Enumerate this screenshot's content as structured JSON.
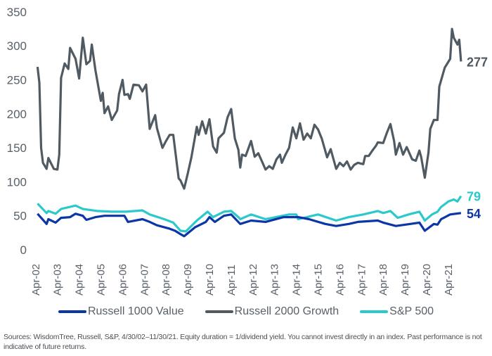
{
  "chart_data": {
    "type": "line",
    "title": "",
    "xlabel": "",
    "ylabel": "",
    "ylim": [
      0,
      350
    ],
    "yticks": [
      "0",
      "50",
      "100",
      "150",
      "200",
      "250",
      "300",
      "350"
    ],
    "xticks": [
      "Apr-02",
      "Apr-03",
      "Apr-04",
      "Apr-05",
      "Apr-06",
      "Apr-07",
      "Apr-08",
      "Apr-09",
      "Apr-10",
      "Apr-11",
      "Apr-12",
      "Apr-13",
      "Apr-14",
      "Apr-15",
      "Apr-16",
      "Apr-17",
      "Apr-18",
      "Apr-19",
      "Apr-20",
      "Apr-21"
    ],
    "grid": false,
    "legend_position": "bottom",
    "series": [
      {
        "name": "Russell 1000 Value",
        "color": "#0b36a8",
        "end_label": "54",
        "points": [
          [
            "2002-05",
            53
          ],
          [
            "2002-10",
            38
          ],
          [
            "2002-11",
            45
          ],
          [
            "2003-03",
            40
          ],
          [
            "2003-06",
            47
          ],
          [
            "2003-11",
            48
          ],
          [
            "2004-02",
            53
          ],
          [
            "2004-06",
            50
          ],
          [
            "2004-08",
            44
          ],
          [
            "2005-01",
            48
          ],
          [
            "2005-06",
            50
          ],
          [
            "2006-05",
            50
          ],
          [
            "2006-07",
            41
          ],
          [
            "2007-03",
            45
          ],
          [
            "2007-07",
            41
          ],
          [
            "2007-11",
            36
          ],
          [
            "2008-06",
            31
          ],
          [
            "2008-09",
            28
          ],
          [
            "2008-12",
            23
          ],
          [
            "2009-02",
            20
          ],
          [
            "2009-08",
            33
          ],
          [
            "2010-02",
            41
          ],
          [
            "2010-04",
            48
          ],
          [
            "2010-07",
            41
          ],
          [
            "2010-12",
            50
          ],
          [
            "2011-04",
            52
          ],
          [
            "2011-09",
            38
          ],
          [
            "2012-03",
            43
          ],
          [
            "2012-11",
            41
          ],
          [
            "2013-09",
            48
          ],
          [
            "2014-05",
            48
          ],
          [
            "2014-11",
            45
          ],
          [
            "2015-08",
            38
          ],
          [
            "2016-02",
            35
          ],
          [
            "2016-09",
            38
          ],
          [
            "2017-02",
            41
          ],
          [
            "2018-01",
            43
          ],
          [
            "2018-04",
            40
          ],
          [
            "2018-11",
            35
          ],
          [
            "2019-07",
            38
          ],
          [
            "2019-12",
            40
          ],
          [
            "2020-03",
            28
          ],
          [
            "2020-08",
            38
          ],
          [
            "2020-10",
            37
          ],
          [
            "2020-12",
            45
          ],
          [
            "2021-05",
            52
          ],
          [
            "2021-11",
            54
          ]
        ]
      },
      {
        "name": "Russell 2000 Growth",
        "color": "#505a63",
        "end_label": "277",
        "points": [
          [
            "2002-05",
            269
          ],
          [
            "2002-06",
            246
          ],
          [
            "2002-07",
            150
          ],
          [
            "2002-08",
            128
          ],
          [
            "2002-10",
            119
          ],
          [
            "2002-11",
            135
          ],
          [
            "2003-02",
            119
          ],
          [
            "2003-04",
            118
          ],
          [
            "2003-05",
            140
          ],
          [
            "2003-06",
            253
          ],
          [
            "2003-08",
            274
          ],
          [
            "2003-10",
            266
          ],
          [
            "2003-11",
            297
          ],
          [
            "2004-02",
            281
          ],
          [
            "2004-04",
            252
          ],
          [
            "2004-06",
            312
          ],
          [
            "2004-08",
            273
          ],
          [
            "2004-10",
            278
          ],
          [
            "2004-11",
            302
          ],
          [
            "2005-01",
            264
          ],
          [
            "2005-04",
            219
          ],
          [
            "2005-05",
            231
          ],
          [
            "2005-06",
            201
          ],
          [
            "2005-08",
            211
          ],
          [
            "2005-10",
            191
          ],
          [
            "2006-01",
            205
          ],
          [
            "2006-02",
            229
          ],
          [
            "2006-04",
            250
          ],
          [
            "2006-05",
            228
          ],
          [
            "2006-07",
            229
          ],
          [
            "2006-08",
            222
          ],
          [
            "2006-10",
            243
          ],
          [
            "2007-01",
            242
          ],
          [
            "2007-03",
            233
          ],
          [
            "2007-05",
            243
          ],
          [
            "2007-07",
            178
          ],
          [
            "2007-10",
            198
          ],
          [
            "2007-11",
            179
          ],
          [
            "2008-02",
            150
          ],
          [
            "2008-04",
            160
          ],
          [
            "2008-06",
            169
          ],
          [
            "2008-08",
            169
          ],
          [
            "2008-11",
            105
          ],
          [
            "2008-12",
            102
          ],
          [
            "2009-02",
            90
          ],
          [
            "2009-04",
            112
          ],
          [
            "2009-06",
            136
          ],
          [
            "2009-09",
            181
          ],
          [
            "2009-10",
            169
          ],
          [
            "2009-12",
            189
          ],
          [
            "2010-02",
            171
          ],
          [
            "2010-04",
            192
          ],
          [
            "2010-06",
            152
          ],
          [
            "2010-08",
            143
          ],
          [
            "2010-09",
            164
          ],
          [
            "2010-12",
            172
          ],
          [
            "2011-02",
            195
          ],
          [
            "2011-04",
            207
          ],
          [
            "2011-06",
            164
          ],
          [
            "2011-08",
            147
          ],
          [
            "2011-09",
            121
          ],
          [
            "2011-10",
            140
          ],
          [
            "2011-12",
            138
          ],
          [
            "2012-03",
            160
          ],
          [
            "2012-05",
            137
          ],
          [
            "2012-07",
            142
          ],
          [
            "2012-09",
            130
          ],
          [
            "2012-11",
            118
          ],
          [
            "2013-01",
            123
          ],
          [
            "2013-03",
            119
          ],
          [
            "2013-05",
            133
          ],
          [
            "2013-07",
            140
          ],
          [
            "2013-08",
            128
          ],
          [
            "2013-10",
            140
          ],
          [
            "2013-12",
            150
          ],
          [
            "2014-02",
            180
          ],
          [
            "2014-04",
            164
          ],
          [
            "2014-06",
            186
          ],
          [
            "2014-08",
            162
          ],
          [
            "2014-10",
            171
          ],
          [
            "2014-12",
            164
          ],
          [
            "2015-02",
            184
          ],
          [
            "2015-04",
            177
          ],
          [
            "2015-06",
            164
          ],
          [
            "2015-09",
            136
          ],
          [
            "2015-11",
            148
          ],
          [
            "2016-02",
            119
          ],
          [
            "2016-04",
            128
          ],
          [
            "2016-06",
            123
          ],
          [
            "2016-08",
            130
          ],
          [
            "2016-10",
            118
          ],
          [
            "2016-12",
            125
          ],
          [
            "2017-02",
            128
          ],
          [
            "2017-05",
            126
          ],
          [
            "2017-06",
            138
          ],
          [
            "2017-08",
            138
          ],
          [
            "2017-10",
            146
          ],
          [
            "2017-12",
            153
          ],
          [
            "2018-01",
            158
          ],
          [
            "2018-04",
            157
          ],
          [
            "2018-06",
            172
          ],
          [
            "2018-08",
            185
          ],
          [
            "2018-10",
            160
          ],
          [
            "2018-11",
            140
          ],
          [
            "2019-01",
            157
          ],
          [
            "2019-03",
            140
          ],
          [
            "2019-05",
            151
          ],
          [
            "2019-08",
            133
          ],
          [
            "2019-10",
            131
          ],
          [
            "2019-12",
            146
          ],
          [
            "2020-01",
            136
          ],
          [
            "2020-03",
            106
          ],
          [
            "2020-05",
            143
          ],
          [
            "2020-06",
            178
          ],
          [
            "2020-08",
            191
          ],
          [
            "2020-10",
            191
          ],
          [
            "2020-11",
            240
          ],
          [
            "2021-02",
            268
          ],
          [
            "2021-05",
            281
          ],
          [
            "2021-06",
            325
          ],
          [
            "2021-07",
            312
          ],
          [
            "2021-09",
            302
          ],
          [
            "2021-10",
            309
          ],
          [
            "2021-11",
            277
          ]
        ]
      },
      {
        "name": "S&P 500",
        "color": "#2cc9cc",
        "end_label": "79",
        "points": [
          [
            "2002-05",
            68
          ],
          [
            "2002-10",
            54
          ],
          [
            "2002-11",
            57
          ],
          [
            "2003-03",
            53
          ],
          [
            "2003-06",
            60
          ],
          [
            "2004-02",
            65
          ],
          [
            "2004-06",
            60
          ],
          [
            "2005-02",
            57
          ],
          [
            "2005-10",
            56
          ],
          [
            "2006-06",
            56
          ],
          [
            "2007-03",
            58
          ],
          [
            "2007-07",
            52
          ],
          [
            "2008-03",
            45
          ],
          [
            "2008-08",
            40
          ],
          [
            "2008-12",
            28
          ],
          [
            "2009-03",
            27
          ],
          [
            "2009-09",
            43
          ],
          [
            "2010-03",
            56
          ],
          [
            "2010-06",
            48
          ],
          [
            "2010-12",
            56
          ],
          [
            "2011-04",
            57
          ],
          [
            "2011-08",
            48
          ],
          [
            "2011-09",
            45
          ],
          [
            "2012-03",
            52
          ],
          [
            "2012-11",
            45
          ],
          [
            "2013-12",
            52
          ],
          [
            "2014-04",
            52
          ],
          [
            "2014-05",
            45
          ],
          [
            "2015-04",
            52
          ],
          [
            "2016-02",
            43
          ],
          [
            "2016-09",
            48
          ],
          [
            "2017-05",
            52
          ],
          [
            "2018-01",
            57
          ],
          [
            "2018-04",
            54
          ],
          [
            "2018-08",
            57
          ],
          [
            "2018-12",
            47
          ],
          [
            "2019-06",
            52
          ],
          [
            "2019-12",
            56
          ],
          [
            "2020-03",
            43
          ],
          [
            "2020-07",
            52
          ],
          [
            "2020-10",
            56
          ],
          [
            "2020-12",
            63
          ],
          [
            "2021-04",
            71
          ],
          [
            "2021-07",
            74
          ],
          [
            "2021-09",
            71
          ],
          [
            "2021-11",
            79
          ]
        ]
      }
    ]
  },
  "footnote": "Sources: WisdomTree, Russell, S&P, 4/30/02–11/30/21. Equity duration = 1/dividend yield. You cannot invest directly in an index. Past performance is not indicative of future returns."
}
